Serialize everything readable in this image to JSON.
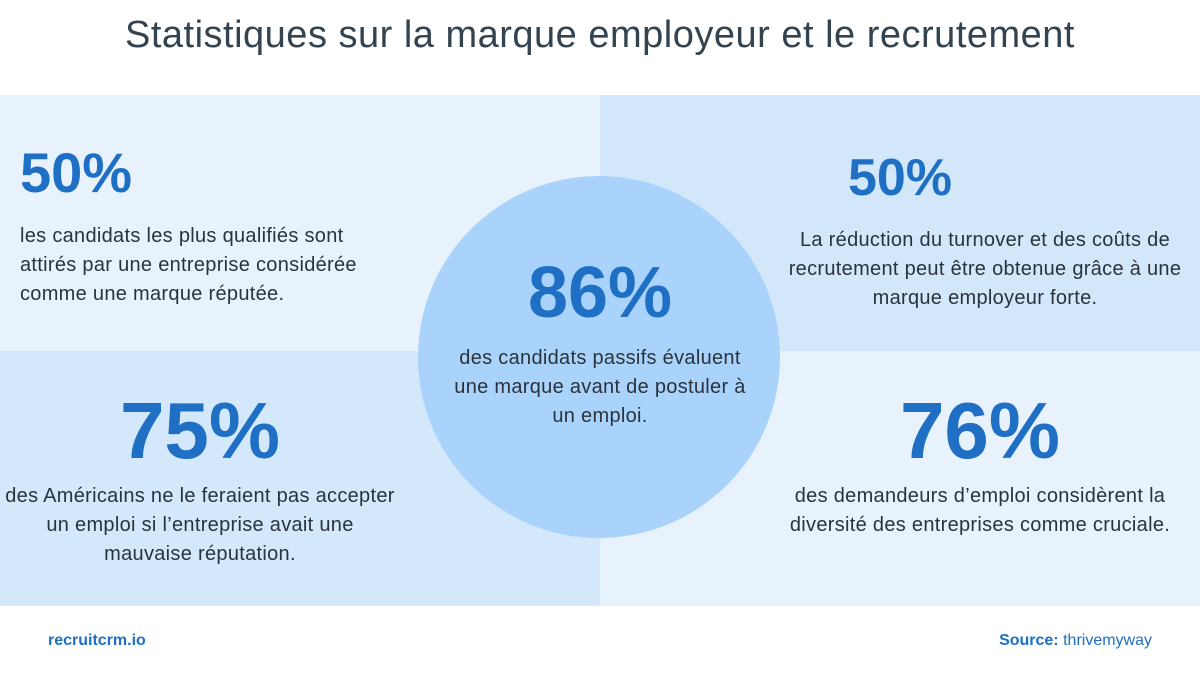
{
  "header": {
    "title": "Statistiques sur la marque employeur et le recrutement"
  },
  "stats": {
    "top_left": {
      "value": "50%",
      "text": "les candidats les plus qualifiés sont attirés par une entreprise considérée comme une marque réputée."
    },
    "top_right": {
      "value": "50%",
      "text": "La réduction du turnover et des coûts de recrutement peut être obtenue grâce à une marque employeur forte."
    },
    "center": {
      "value": "86%",
      "text": "des candidats passifs évaluent une marque avant de postuler à un emploi."
    },
    "bottom_left": {
      "value": "75%",
      "text": "des Américains ne le feraient pas accepter un emploi si l’entreprise avait une mauvaise réputation."
    },
    "bottom_right": {
      "value": "76%",
      "text": "des demandeurs d’emploi considèrent la diversité des entreprises comme cruciale."
    }
  },
  "footer": {
    "brand": "recruitcrm.io",
    "source_label": "Source:",
    "source_value": "thrivemyway"
  },
  "colors": {
    "accent": "#1f6fc5",
    "circle": "#a9d3fb",
    "panel_light": "#e8f2fc",
    "panel_mid": "#d3e7fa"
  }
}
